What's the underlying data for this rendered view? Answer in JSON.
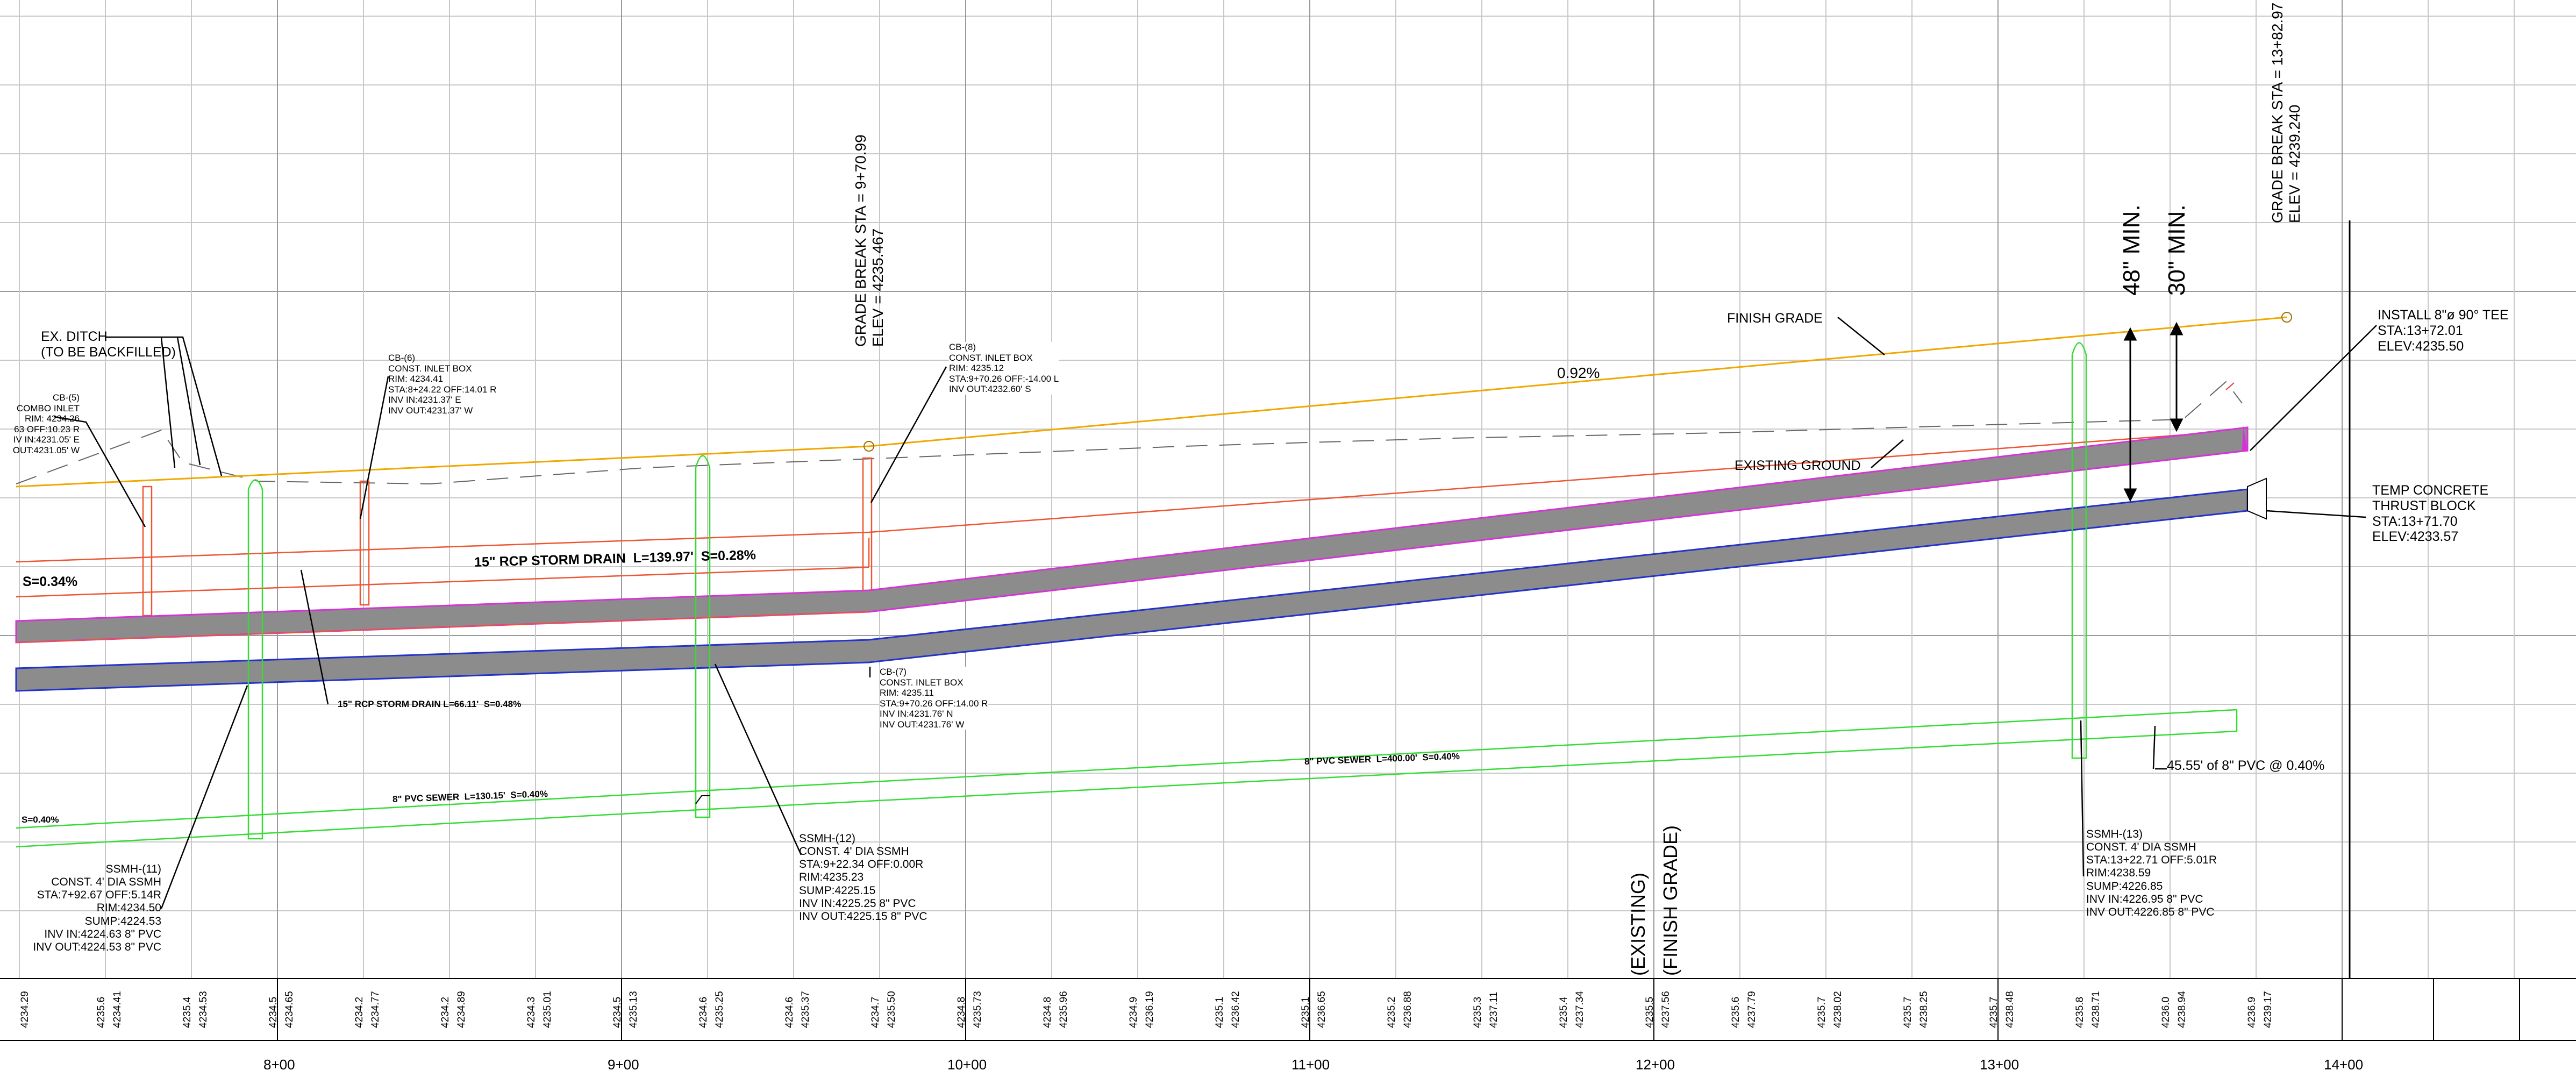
{
  "notes": {
    "ex_ditch": "EX. DITCH\n(TO BE BACKFILLED)",
    "cb5": "CB-(5)\nCOMBO INLET\nRIM: 4234.26\n63 OFF:10.23 R\nIV IN:4231.05' E\nOUT:4231.05' W",
    "cb6a": "CB-(6)\nCONST. INLET BOX\nRIM: 4234.41\nSTA:8+24.22 OFF:14.01 R\nINV IN:4231.37' E\nINV OUT:4231.37' W",
    "cb8": "CB-(8)\nCONST. INLET BOX\nRIM: 4235.12\nSTA:9+70.26 OFF:-14.00 L\nINV OUT:4232.60' S",
    "cb7": "CB-(7)\nCONST. INLET BOX\nRIM: 4235.11\nSTA:9+70.26 OFF:14.00 R\nINV IN:4231.76' N\nINV OUT:4231.76' W",
    "grade_break_1": "GRADE BREAK STA = 9+70.99\nELEV = 4235.467",
    "grade_break_2": "GRADE BREAK STA = 13+82.97\nELEV = 4239.240",
    "finish_grade": "FINISH GRADE",
    "slope_092": "0.92%",
    "existing_ground": "EXISTING GROUND",
    "min_48": "48\" MIN.",
    "min_30": "30\" MIN.",
    "install_tee": "INSTALL 8\"ø 90° TEE\nSTA:13+72.01\nELEV:4235.50",
    "thrust_block": "TEMP CONCRETE\nTHRUST BLOCK\nSTA:13+71.70\nELEV:4233.57",
    "s_034": "S=0.34%",
    "storm_rcp_1": "15\" RCP STORM DRAIN  L=139.97'  S=0.28%",
    "storm_rcp_2": "15\" RCP STORM DRAIN L=66.11'  S=0.48%",
    "sewer_1": "8\" PVC SEWER  L=130.15'  S=0.40%",
    "sewer_2": "8\" PVC SEWER  L=400.00'  S=0.40%",
    "s_040": "S=0.40%",
    "pvc_4555": "45.55' of 8\" PVC @ 0.40%",
    "ssmh11": "SSMH-(11)\nCONST. 4' DIA SSMH\nSTA:7+92.67 OFF:5.14R\nRIM:4234.50\nSUMP:4224.53\nINV IN:4224.63 8\" PVC\nINV OUT:4224.53 8\" PVC",
    "ssmh12": "SSMH-(12)\nCONST. 4' DIA SSMH\nSTA:9+22.34 OFF:0.00R\nRIM:4235.23\nSUMP:4225.15\nINV IN:4225.25 8\" PVC\nINV OUT:4225.15 8\" PVC",
    "ssmh13": "SSMH-(13)\nCONST. 4' DIA SSMH\nSTA:13+22.71 OFF:5.01R\nRIM:4238.59\nSUMP:4226.85\nINV IN:4226.95 8\" PVC\nINV OUT:4226.85 8\" PVC",
    "legend_existing": "(EXISTING)",
    "legend_finish": "(FINISH GRADE)"
  },
  "elevations": [
    "4234.29",
    "4235.6",
    "4234.41",
    "4235.4",
    "4234.53",
    "4234.5",
    "4234.65",
    "4234.2",
    "4234.77",
    "4234.2",
    "4234.89",
    "4234.3",
    "4235.01",
    "4234.5",
    "4235.13",
    "4234.6",
    "4235.25",
    "4234.6",
    "4235.37",
    "4234.7",
    "4235.50",
    "4234.8",
    "4235.73",
    "4234.8",
    "4235.96",
    "4234.9",
    "4236.19",
    "4235.1",
    "4236.42",
    "4235.1",
    "4236.65",
    "4235.2",
    "4236.88",
    "4235.3",
    "4237.11",
    "4235.4",
    "4237.34",
    "4235.5",
    "4237.56",
    "4235.6",
    "4237.79",
    "4235.7",
    "4238.02",
    "4235.7",
    "4238.25",
    "4235.7",
    "4238.48",
    "4235.8",
    "4238.71",
    "4236.0",
    "4238.94",
    "4236.9",
    "4239.17"
  ],
  "stations": [
    "8+00",
    "9+00",
    "10+00",
    "11+00",
    "12+00",
    "13+00",
    "14+00"
  ],
  "colors": {
    "finish_grade": "#f0a800",
    "storm": "#ee5533",
    "sewer": "#33dd33",
    "pipe_fill": "#8c8c8c",
    "pipe_top": "#d633d6",
    "pipe_low": "#2233cc",
    "grid": "#c8c8c8"
  }
}
